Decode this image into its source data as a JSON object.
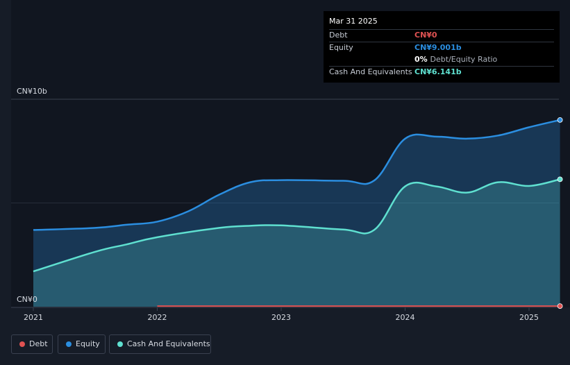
{
  "chart_data": {
    "type": "area",
    "x_labels": [
      "2021",
      "2022",
      "2023",
      "2024",
      "2025"
    ],
    "x_range": [
      2021.0,
      2025.25
    ],
    "y_range": [
      0,
      10
    ],
    "y_unit": "b",
    "y_tick_labels": {
      "top": "CN¥10b",
      "bottom": "CN¥0"
    },
    "grid": "horizontal",
    "legend_position": "bottom-left",
    "series": [
      {
        "name": "Debt",
        "color": "#e05252",
        "points": [
          [
            2022.0,
            0.03
          ],
          [
            2025.25,
            0.03
          ]
        ]
      },
      {
        "name": "Equity",
        "color": "#2b8ee0",
        "points": [
          [
            2021.0,
            3.7
          ],
          [
            2021.5,
            3.8
          ],
          [
            2021.75,
            3.95
          ],
          [
            2022.0,
            4.1
          ],
          [
            2022.25,
            4.6
          ],
          [
            2022.5,
            5.4
          ],
          [
            2022.75,
            6.0
          ],
          [
            2023.0,
            6.1
          ],
          [
            2023.5,
            6.07
          ],
          [
            2023.75,
            6.08
          ],
          [
            2024.0,
            8.1
          ],
          [
            2024.25,
            8.2
          ],
          [
            2024.5,
            8.1
          ],
          [
            2024.75,
            8.25
          ],
          [
            2025.0,
            8.65
          ],
          [
            2025.25,
            9.001
          ]
        ]
      },
      {
        "name": "Cash And Equivalents",
        "color": "#5fe0d0",
        "points": [
          [
            2021.0,
            1.7
          ],
          [
            2021.5,
            2.65
          ],
          [
            2021.75,
            3.0
          ],
          [
            2022.0,
            3.35
          ],
          [
            2022.5,
            3.8
          ],
          [
            2022.75,
            3.9
          ],
          [
            2023.0,
            3.92
          ],
          [
            2023.5,
            3.72
          ],
          [
            2023.75,
            3.7
          ],
          [
            2024.0,
            5.8
          ],
          [
            2024.25,
            5.8
          ],
          [
            2024.5,
            5.5
          ],
          [
            2024.75,
            6.0
          ],
          [
            2025.0,
            5.82
          ],
          [
            2025.25,
            6.141
          ]
        ]
      }
    ]
  },
  "tooltip": {
    "date": "Mar 31 2025",
    "rows": [
      {
        "label": "Debt",
        "value": "CN¥0",
        "color": "#e05252"
      },
      {
        "label": "Equity",
        "value": "CN¥9.001b",
        "color": "#2b8ee0"
      },
      {
        "label": "",
        "value": "0%",
        "suffix": "Debt/Equity Ratio",
        "color": "#ffffff"
      },
      {
        "label": "Cash And Equivalents",
        "value": "CN¥6.141b",
        "color": "#5fe0d0"
      }
    ]
  },
  "legend": [
    {
      "label": "Debt",
      "color": "#e05252"
    },
    {
      "label": "Equity",
      "color": "#2b8ee0"
    },
    {
      "label": "Cash And Equivalents",
      "color": "#5fe0d0"
    }
  ]
}
